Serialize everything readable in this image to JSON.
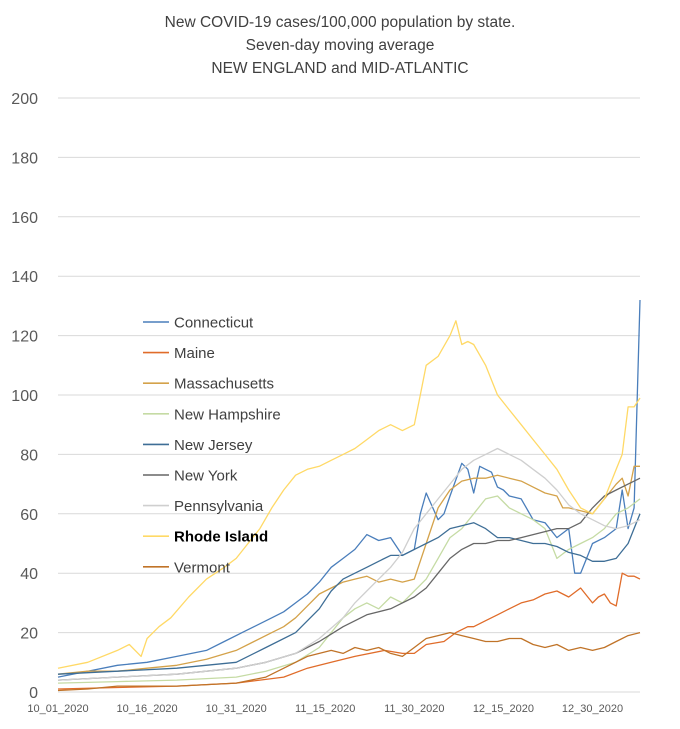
{
  "chart_data": {
    "type": "line",
    "title_lines": [
      "New COVID-19 cases/100,000 population by state.",
      "Seven-day moving average",
      "NEW ENGLAND and MID-ATLANTIC"
    ],
    "xlabel": "",
    "ylabel": "",
    "ylim": [
      0,
      200
    ],
    "y_ticks": [
      0,
      20,
      40,
      60,
      80,
      100,
      120,
      140,
      160,
      180,
      200
    ],
    "x_tick_labels": [
      "10_01_2020",
      "10_16_2020",
      "10_31_2020",
      "11_15_2020",
      "11_30_2020",
      "12_15_2020",
      "12_30_2020"
    ],
    "x_tick_days": [
      0,
      15,
      30,
      45,
      60,
      75,
      90
    ],
    "x_range_days": [
      0,
      98
    ],
    "grid": "horizontal",
    "legend_position": "center-left",
    "series": [
      {
        "name": "Connecticut",
        "color": "#4a7ebb",
        "bold": false,
        "x": [
          0,
          5,
          10,
          15,
          20,
          25,
          28,
          31,
          33,
          36,
          38,
          40,
          42,
          44,
          46,
          48,
          50,
          52,
          54,
          56,
          58,
          60,
          61,
          62,
          64,
          65,
          66,
          68,
          69,
          70,
          71,
          72,
          73,
          74,
          75,
          76,
          78,
          80,
          82,
          84,
          86,
          87,
          88,
          89,
          90,
          92,
          94,
          95,
          96,
          97,
          98
        ],
        "y": [
          5,
          7,
          9,
          10,
          12,
          14,
          17,
          20,
          22,
          25,
          27,
          30,
          33,
          37,
          42,
          45,
          48,
          53,
          51,
          52,
          46,
          48,
          60,
          67,
          58,
          60,
          66,
          77,
          75,
          67,
          76,
          75,
          74,
          69,
          68,
          66,
          65,
          58,
          57,
          52,
          55,
          40,
          40,
          45,
          50,
          52,
          55,
          68,
          55,
          62,
          132
        ]
      },
      {
        "name": "Maine",
        "color": "#e06c2a",
        "bold": false,
        "x": [
          0,
          10,
          20,
          30,
          38,
          42,
          46,
          50,
          55,
          58,
          60,
          62,
          65,
          67,
          69,
          70,
          72,
          74,
          76,
          78,
          80,
          82,
          84,
          86,
          88,
          90,
          91,
          92,
          93,
          94,
          95,
          96,
          97,
          98
        ],
        "y": [
          1,
          1.5,
          2,
          3,
          5,
          8,
          10,
          12,
          14,
          13,
          13,
          16,
          17,
          20,
          22,
          22,
          24,
          26,
          28,
          30,
          31,
          33,
          34,
          32,
          35,
          30,
          32,
          33,
          30,
          29,
          40,
          39,
          39,
          38
        ]
      },
      {
        "name": "Massachusetts",
        "color": "#d4a24a",
        "bold": false,
        "x": [
          0,
          5,
          10,
          15,
          20,
          25,
          30,
          33,
          36,
          38,
          40,
          42,
          44,
          46,
          48,
          50,
          52,
          54,
          56,
          58,
          60,
          62,
          64,
          66,
          68,
          70,
          72,
          74,
          76,
          78,
          80,
          82,
          84,
          85,
          86,
          88,
          90,
          92,
          94,
          95,
          96,
          97,
          98
        ],
        "y": [
          6,
          7,
          7,
          8,
          9,
          11,
          14,
          17,
          20,
          22,
          25,
          29,
          33,
          35,
          37,
          38,
          39,
          37,
          38,
          37,
          38,
          50,
          62,
          68,
          71,
          72,
          72,
          73,
          72,
          71,
          69,
          67,
          66,
          62,
          62,
          61,
          60,
          65,
          70,
          72,
          66,
          76,
          76
        ]
      },
      {
        "name": "New Hampshire",
        "color": "#c5dba4",
        "bold": false,
        "x": [
          0,
          10,
          20,
          30,
          35,
          40,
          44,
          46,
          48,
          50,
          52,
          54,
          56,
          58,
          60,
          62,
          64,
          66,
          68,
          70,
          72,
          74,
          76,
          78,
          80,
          82,
          84,
          86,
          88,
          90,
          92,
          94,
          96,
          98
        ],
        "y": [
          3,
          3.5,
          4,
          5,
          7,
          10,
          15,
          20,
          25,
          28,
          30,
          28,
          32,
          30,
          34,
          38,
          45,
          52,
          55,
          60,
          65,
          66,
          62,
          60,
          58,
          55,
          45,
          48,
          50,
          52,
          55,
          60,
          62,
          65
        ]
      },
      {
        "name": "New Jersey",
        "color": "#3e6e96",
        "bold": false,
        "x": [
          0,
          10,
          20,
          30,
          35,
          40,
          44,
          46,
          48,
          50,
          52,
          54,
          56,
          58,
          60,
          62,
          64,
          66,
          68,
          70,
          72,
          74,
          76,
          78,
          80,
          82,
          84,
          86,
          88,
          90,
          92,
          94,
          96,
          98
        ],
        "y": [
          6,
          7,
          8,
          10,
          15,
          20,
          28,
          34,
          38,
          40,
          42,
          44,
          46,
          46,
          48,
          50,
          52,
          55,
          56,
          57,
          55,
          52,
          52,
          51,
          50,
          50,
          49,
          47,
          46,
          44,
          44,
          45,
          50,
          60
        ]
      },
      {
        "name": "New York",
        "color": "#676767",
        "bold": false,
        "x": [
          0,
          10,
          20,
          25,
          30,
          35,
          40,
          44,
          48,
          52,
          56,
          58,
          60,
          62,
          64,
          66,
          68,
          70,
          72,
          74,
          76,
          78,
          80,
          82,
          84,
          86,
          88,
          90,
          92,
          94,
          96,
          98
        ],
        "y": [
          4,
          5,
          6,
          7,
          8,
          10,
          13,
          17,
          22,
          26,
          28,
          30,
          32,
          35,
          40,
          45,
          48,
          50,
          50,
          51,
          51,
          52,
          53,
          54,
          55,
          55,
          57,
          62,
          66,
          68,
          70,
          72
        ]
      },
      {
        "name": "Pennsylvania",
        "color": "#cfcfcf",
        "bold": false,
        "x": [
          0,
          10,
          20,
          25,
          30,
          35,
          40,
          44,
          48,
          50,
          52,
          54,
          56,
          58,
          60,
          62,
          64,
          66,
          68,
          70,
          72,
          74,
          76,
          78,
          80,
          82,
          84,
          86,
          88,
          90,
          92,
          94,
          96,
          98
        ],
        "y": [
          4,
          5,
          6,
          7,
          8,
          10,
          13,
          18,
          25,
          30,
          34,
          38,
          42,
          47,
          55,
          60,
          65,
          70,
          75,
          78,
          80,
          82,
          80,
          78,
          75,
          72,
          68,
          63,
          60,
          58,
          56,
          55,
          56,
          58
        ]
      },
      {
        "name": "Rhode Island",
        "color": "#ffd966",
        "bold": true,
        "x": [
          0,
          5,
          10,
          12,
          14,
          15,
          17,
          19,
          22,
          25,
          28,
          30,
          32,
          34,
          36,
          38,
          40,
          42,
          44,
          46,
          48,
          50,
          52,
          54,
          56,
          58,
          60,
          61,
          62,
          64,
          66,
          67,
          68,
          69,
          70,
          72,
          74,
          76,
          78,
          80,
          82,
          84,
          86,
          88,
          90,
          92,
          94,
          95,
          96,
          97,
          98
        ],
        "y": [
          8,
          10,
          14,
          16,
          12,
          18,
          22,
          25,
          32,
          38,
          42,
          45,
          50,
          55,
          62,
          68,
          73,
          75,
          76,
          78,
          80,
          82,
          85,
          88,
          90,
          88,
          90,
          100,
          110,
          113,
          120,
          125,
          117,
          118,
          117,
          110,
          100,
          95,
          90,
          85,
          80,
          75,
          68,
          62,
          60,
          65,
          75,
          80,
          96,
          96,
          99
        ]
      },
      {
        "name": "Vermont",
        "color": "#c07328",
        "bold": false,
        "x": [
          0,
          5,
          10,
          15,
          20,
          25,
          30,
          35,
          40,
          42,
          44,
          46,
          48,
          50,
          52,
          54,
          56,
          58,
          60,
          62,
          64,
          66,
          68,
          70,
          72,
          74,
          76,
          78,
          80,
          82,
          84,
          86,
          88,
          90,
          92,
          94,
          96,
          98
        ],
        "y": [
          0.5,
          1,
          2,
          2,
          2,
          2.5,
          3,
          5,
          10,
          12,
          13,
          14,
          13,
          15,
          14,
          15,
          13,
          12,
          15,
          18,
          19,
          20,
          19,
          18,
          17,
          17,
          18,
          18,
          16,
          15,
          16,
          14,
          15,
          14,
          15,
          17,
          19,
          20
        ]
      }
    ]
  }
}
